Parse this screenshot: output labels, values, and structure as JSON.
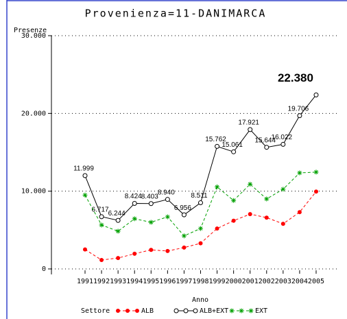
{
  "chart_data": {
    "type": "line",
    "title": "Provenienza=11-DANIMARCA",
    "y_label": "Presenze",
    "x_label": "Anno",
    "legend_title": "Settore",
    "categories": [
      "1991",
      "1992",
      "1993",
      "1994",
      "1995",
      "1996",
      "1997",
      "1998",
      "1999",
      "2000",
      "2001",
      "2002",
      "2003",
      "2004",
      "2005"
    ],
    "ylim": [
      0,
      30000
    ],
    "yticks": [
      0,
      {
        "value": 10000,
        "label": "10.000"
      },
      {
        "value": 20000,
        "label": "20.000"
      },
      {
        "value": 30000,
        "label": "30.000"
      }
    ],
    "grid": true,
    "series": [
      {
        "name": "ALB",
        "color": "#ff0000",
        "marker": "dot",
        "dash": true,
        "values": [
          2500,
          1150,
          1400,
          1950,
          2450,
          2300,
          2750,
          3300,
          5200,
          6200,
          7050,
          6600,
          5800,
          7300,
          9950
        ]
      },
      {
        "name": "ALB+EXT",
        "color": "#000000",
        "marker": "circle",
        "dash": false,
        "values": [
          11999,
          6717,
          6244,
          8424,
          8403,
          8940,
          6956,
          8511,
          15762,
          15061,
          17921,
          15644,
          16022,
          19706,
          22380
        ],
        "value_labels": [
          "11.999",
          "6.717",
          "6.244",
          "8.424",
          "8.403",
          "8.940",
          "6.956",
          "8.511",
          "15.762",
          "15.061",
          "17.921",
          "15.644",
          "16.022",
          "19.706",
          "22.380"
        ]
      },
      {
        "name": "EXT",
        "color": "#00a000",
        "marker": "star",
        "dash": true,
        "values": [
          9500,
          5650,
          4850,
          6450,
          6000,
          6700,
          4250,
          5200,
          10550,
          8800,
          10900,
          9000,
          10250,
          12350,
          12450
        ]
      }
    ]
  }
}
